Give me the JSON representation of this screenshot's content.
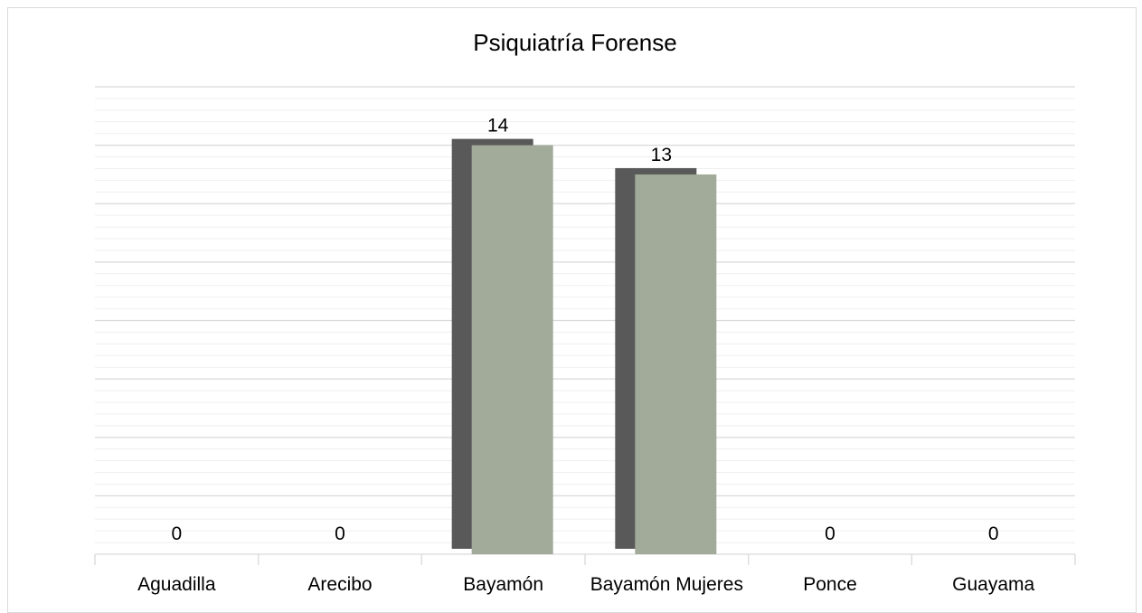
{
  "chart_data": {
    "type": "bar",
    "title": "Psiquiatría Forense",
    "categories": [
      "Aguadilla",
      "Arecibo",
      "Bayamón",
      "Bayamón Mujeres",
      "Ponce",
      "Guayama"
    ],
    "values": [
      0,
      0,
      14,
      13,
      0,
      0
    ],
    "ylim": [
      0,
      16
    ],
    "grid": true,
    "colors": {
      "bar": "#a2ab9a",
      "bar_shadow": "#595959",
      "major_grid": "#d9d9d9",
      "minor_grid": "#efefef",
      "axis": "#d9d9d9"
    }
  }
}
